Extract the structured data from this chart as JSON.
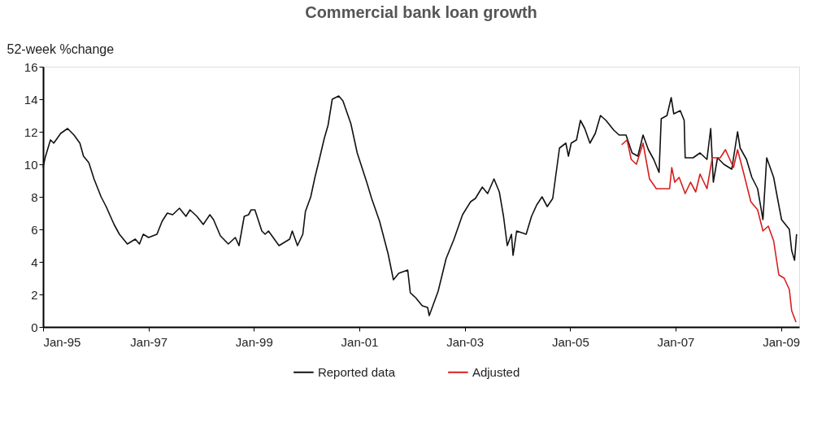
{
  "chart_data": {
    "type": "line",
    "title": "Commercial bank loan growth",
    "ylabel": "52-week  %change",
    "xlim": [
      "1995-01-01",
      "2009-05-07"
    ],
    "ylim": [
      0,
      16
    ],
    "yticks": [
      0,
      2,
      4,
      6,
      8,
      10,
      12,
      14,
      16
    ],
    "xticks": [
      {
        "value": "1995-01-01",
        "label": "Jan-95"
      },
      {
        "value": "1997-01-01",
        "label": "Jan-97"
      },
      {
        "value": "1999-01-01",
        "label": "Jan-99"
      },
      {
        "value": "2001-01-01",
        "label": "Jan-01"
      },
      {
        "value": "2003-01-01",
        "label": "Jan-03"
      },
      {
        "value": "2005-01-01",
        "label": "Jan-05"
      },
      {
        "value": "2007-01-01",
        "label": "Jan-07"
      },
      {
        "value": "2009-01-01",
        "label": "Jan-09"
      }
    ],
    "grid": false,
    "legend": "bottom",
    "line_style": "solid",
    "marker": "none",
    "series": [
      {
        "name": "Reported data",
        "color": "#111111",
        "x": [
          "1995-01-01",
          "1995-01-15",
          "1995-02-21",
          "1995-03-16",
          "1995-05-03",
          "1995-06-20",
          "1995-08-03",
          "1995-09-13",
          "1995-10-08",
          "1995-11-14",
          "1995-12-20",
          "1996-02-07",
          "1996-03-13",
          "1996-05-07",
          "1996-06-13",
          "1996-08-07",
          "1996-10-01",
          "1996-10-30",
          "1996-11-25",
          "1997-01-01",
          "1997-02-28",
          "1997-04-05",
          "1997-05-11",
          "1997-06-17",
          "1997-08-03",
          "1997-09-17",
          "1997-10-15",
          "1997-12-02",
          "1998-01-15",
          "1998-03-02",
          "1998-03-27",
          "1998-05-14",
          "1998-07-08",
          "1998-08-25",
          "1998-09-20",
          "1998-10-26",
          "1998-11-25",
          "1998-12-13",
          "1999-01-08",
          "1999-02-25",
          "1999-03-20",
          "1999-04-12",
          "1999-06-24",
          "1999-09-06",
          "1999-09-24",
          "1999-10-30",
          "1999-12-06",
          "1999-12-24",
          "2000-01-30",
          "2000-02-28",
          "2000-03-24",
          "2000-05-03",
          "2000-05-29",
          "2000-06-27",
          "2000-08-11",
          "2000-09-09",
          "2000-11-03",
          "2000-12-17",
          "2001-02-21",
          "2001-03-27",
          "2001-05-21",
          "2001-07-19",
          "2001-08-25",
          "2001-10-01",
          "2001-12-02",
          "2001-12-20",
          "2002-01-26",
          "2002-03-13",
          "2002-04-19",
          "2002-04-30",
          "2002-05-25",
          "2002-07-01",
          "2002-08-25",
          "2002-10-19",
          "2002-12-17",
          "2003-02-11",
          "2003-03-16",
          "2003-05-03",
          "2003-06-09",
          "2003-07-23",
          "2003-08-29",
          "2003-09-27",
          "2003-10-23",
          "2003-11-21",
          "2003-12-02",
          "2003-12-27",
          "2004-03-02",
          "2004-04-08",
          "2004-05-14",
          "2004-06-20",
          "2004-07-26",
          "2004-09-02",
          "2004-09-20",
          "2004-10-19",
          "2004-12-02",
          "2004-12-20",
          "2005-01-08",
          "2005-02-14",
          "2005-03-13",
          "2005-04-12",
          "2005-05-18",
          "2005-06-24",
          "2005-07-30",
          "2005-09-06",
          "2005-10-30",
          "2005-12-06",
          "2006-01-23",
          "2006-03-06",
          "2006-04-15",
          "2006-05-21",
          "2006-06-27",
          "2006-08-03",
          "2006-09-09",
          "2006-09-24",
          "2006-11-03",
          "2006-12-02",
          "2006-12-20",
          "2007-02-03",
          "2007-03-02",
          "2007-03-09",
          "2007-05-03",
          "2007-06-20",
          "2007-08-07",
          "2007-09-02",
          "2007-09-20",
          "2007-10-19",
          "2007-12-02",
          "2008-01-26",
          "2008-03-06",
          "2008-03-24",
          "2008-05-07",
          "2008-06-13",
          "2008-07-23",
          "2008-08-29",
          "2008-09-24",
          "2008-11-11",
          "2008-12-06",
          "2009-01-05",
          "2009-02-28",
          "2009-03-16",
          "2009-04-05",
          "2009-04-19"
        ],
        "values": [
          9.8,
          10.4,
          11.5,
          11.3,
          11.9,
          12.2,
          11.8,
          11.3,
          10.5,
          10.1,
          9.1,
          8.0,
          7.4,
          6.3,
          5.7,
          5.1,
          5.4,
          5.1,
          5.7,
          5.5,
          5.7,
          6.5,
          7.0,
          6.9,
          7.3,
          6.8,
          7.2,
          6.8,
          6.3,
          6.9,
          6.6,
          5.6,
          5.1,
          5.5,
          5.0,
          6.8,
          6.9,
          7.2,
          7.2,
          5.9,
          5.7,
          5.9,
          5.0,
          5.4,
          5.9,
          5.0,
          5.7,
          7.1,
          8.0,
          9.2,
          10.1,
          11.6,
          12.4,
          14.0,
          14.2,
          13.9,
          12.5,
          10.7,
          8.9,
          7.9,
          6.5,
          4.5,
          2.9,
          3.3,
          3.5,
          2.1,
          1.8,
          1.3,
          1.2,
          0.7,
          1.3,
          2.2,
          4.2,
          5.4,
          6.9,
          7.7,
          7.9,
          8.6,
          8.2,
          9.1,
          8.3,
          6.8,
          5.0,
          5.7,
          4.4,
          5.9,
          5.7,
          6.8,
          7.5,
          8.0,
          7.4,
          7.9,
          9.1,
          11.0,
          11.3,
          10.5,
          11.3,
          11.5,
          12.7,
          12.2,
          11.3,
          11.9,
          13.0,
          12.7,
          12.1,
          11.8,
          11.8,
          10.7,
          10.5,
          11.8,
          10.9,
          10.3,
          9.5,
          12.8,
          13.0,
          14.1,
          13.1,
          13.3,
          12.7,
          10.4,
          10.4,
          10.7,
          10.3,
          12.2,
          8.9,
          10.4,
          10.0,
          9.7,
          12.0,
          11.0,
          10.3,
          9.2,
          8.5,
          6.6,
          10.4,
          9.2,
          8.0,
          6.6,
          6.0,
          4.7,
          4.1,
          5.7
        ]
      },
      {
        "name": "Adjusted",
        "color": "#d81e1e",
        "x": [
          "2005-12-24",
          "2006-01-30",
          "2006-02-28",
          "2006-04-05",
          "2006-05-21",
          "2006-07-05",
          "2006-08-21",
          "2006-10-15",
          "2006-11-21",
          "2006-12-06",
          "2006-12-27",
          "2007-01-26",
          "2007-03-09",
          "2007-04-15",
          "2007-05-21",
          "2007-06-20",
          "2007-08-07",
          "2007-09-13",
          "2007-11-07",
          "2007-12-13",
          "2008-02-07",
          "2008-03-06",
          "2008-04-19",
          "2008-06-06",
          "2008-07-23",
          "2008-08-29",
          "2008-10-05",
          "2008-11-11",
          "2008-12-17",
          "2009-01-23",
          "2009-02-28",
          "2009-03-16",
          "2009-04-15"
        ],
        "values": [
          11.2,
          11.5,
          10.3,
          10.0,
          11.3,
          9.1,
          8.5,
          8.5,
          8.5,
          9.8,
          8.9,
          9.2,
          8.2,
          8.9,
          8.3,
          9.4,
          8.5,
          10.4,
          10.4,
          10.9,
          9.8,
          10.9,
          9.4,
          7.7,
          7.2,
          5.9,
          6.2,
          5.3,
          3.2,
          3.0,
          2.3,
          1.0,
          0.3
        ]
      }
    ]
  }
}
